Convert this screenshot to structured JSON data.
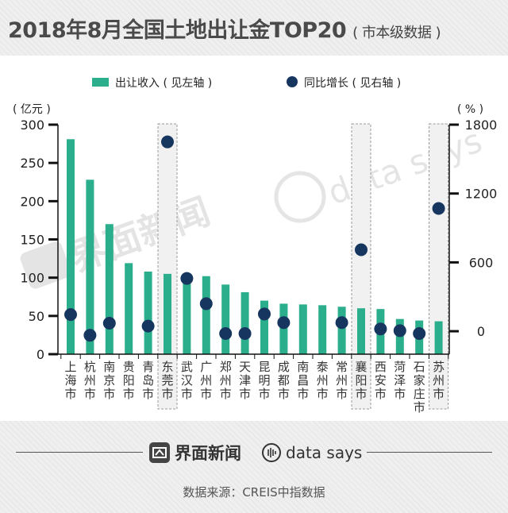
{
  "header": {
    "title": "2018年8月全国土地出让金TOP20",
    "subtitle": "( 市本级数据 )"
  },
  "colors": {
    "bar": "#2aae8b",
    "dot": "#163660",
    "axis": "#111111",
    "highlight_border": "#9a9a9a",
    "highlight_fill": "#f1f1f1"
  },
  "chart_data": {
    "type": "bar",
    "categories": [
      "上海市",
      "杭州市",
      "南京市",
      "贵阳市",
      "青岛市",
      "东莞市",
      "武汉市",
      "广州市",
      "郑州市",
      "天津市",
      "昆明市",
      "成都市",
      "南昌市",
      "泰州市",
      "常州市",
      "襄阳市",
      "西安市",
      "菏泽市",
      "石家庄市",
      "苏州市"
    ],
    "highlighted": [
      "东莞市",
      "襄阳市",
      "苏州市"
    ],
    "legend": {
      "position": "top",
      "bar_label": "出让收入 ( 见左轴 )",
      "dot_label": "同比增长 ( 见右轴 )"
    },
    "series": [
      {
        "name": "出让收入 ( 见左轴 )",
        "type": "bar",
        "axis": "left",
        "values": [
          281,
          228,
          170,
          119,
          108,
          105,
          102,
          102,
          91,
          81,
          70,
          66,
          65,
          64,
          62,
          60,
          59,
          46,
          44,
          43
        ]
      },
      {
        "name": "同比增长 ( 见右轴 )",
        "type": "scatter",
        "axis": "right",
        "values": [
          145,
          -35,
          70,
          null,
          45,
          1650,
          460,
          240,
          -20,
          -20,
          150,
          75,
          null,
          null,
          75,
          710,
          20,
          5,
          -20,
          1070
        ]
      }
    ],
    "y_left": {
      "label": "( 亿元 )",
      "ylim": [
        0,
        300
      ],
      "ticks": [
        "0",
        "50",
        "100",
        "150",
        "200",
        "250",
        "300"
      ],
      "tick_values": [
        0,
        50,
        100,
        150,
        200,
        250,
        300
      ]
    },
    "y_right": {
      "label": "( % )",
      "ylim": [
        -200,
        1800
      ],
      "ticks": [
        "0",
        "600",
        "1200",
        "1800"
      ],
      "tick_values": [
        0,
        600,
        1200,
        1800
      ]
    },
    "grid": false
  },
  "watermarks": {
    "jiemian": "界面新闻",
    "datasays": "data says"
  },
  "footer": {
    "logo_jiemian": "界面新闻",
    "logo_datasays": "data says",
    "source": "数据来源：CREIS中指数据"
  }
}
